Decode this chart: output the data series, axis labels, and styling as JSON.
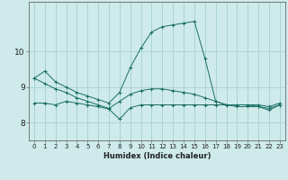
{
  "title": "",
  "xlabel": "Humidex (Indice chaleur)",
  "ylabel": "",
  "xlim": [
    -0.5,
    23.5
  ],
  "ylim": [
    7.5,
    11.4
  ],
  "yticks": [
    8,
    9,
    10
  ],
  "xtick_labels": [
    "0",
    "1",
    "2",
    "3",
    "4",
    "5",
    "6",
    "7",
    "8",
    "9",
    "10",
    "11",
    "12",
    "13",
    "14",
    "15",
    "16",
    "17",
    "18",
    "19",
    "20",
    "21",
    "22",
    "23"
  ],
  "background_color": "#ceeaea",
  "grid_color": "#aad4d4",
  "line_color": "#1a6e64",
  "line1_x": [
    0,
    1,
    2,
    3,
    4,
    5,
    6,
    7,
    8,
    9,
    10,
    11,
    12,
    13,
    14,
    15,
    16,
    17,
    18,
    19,
    20,
    21,
    22,
    23
  ],
  "line1_y": [
    9.25,
    9.45,
    9.15,
    9.0,
    8.85,
    8.75,
    8.65,
    8.55,
    8.85,
    9.55,
    10.1,
    10.55,
    10.7,
    10.75,
    10.8,
    10.85,
    9.8,
    8.6,
    8.5,
    8.5,
    8.5,
    8.5,
    8.45,
    8.55
  ],
  "line2_x": [
    0,
    1,
    2,
    3,
    4,
    5,
    6,
    7,
    8,
    9,
    10,
    11,
    12,
    13,
    14,
    15,
    16,
    17,
    18,
    19,
    20,
    21,
    22,
    23
  ],
  "line2_y": [
    9.25,
    9.1,
    8.95,
    8.85,
    8.7,
    8.6,
    8.5,
    8.4,
    8.6,
    8.8,
    8.9,
    8.95,
    8.95,
    8.9,
    8.85,
    8.8,
    8.7,
    8.6,
    8.5,
    8.45,
    8.45,
    8.45,
    8.4,
    8.5
  ],
  "line3_x": [
    0,
    1,
    2,
    3,
    4,
    5,
    6,
    7,
    8,
    9,
    10,
    11,
    12,
    13,
    14,
    15,
    16,
    17,
    18,
    19,
    20,
    21,
    22,
    23
  ],
  "line3_y": [
    8.55,
    8.55,
    8.5,
    8.6,
    8.55,
    8.5,
    8.45,
    8.38,
    8.1,
    8.42,
    8.5,
    8.5,
    8.5,
    8.5,
    8.5,
    8.5,
    8.5,
    8.5,
    8.5,
    8.5,
    8.5,
    8.45,
    8.35,
    8.5
  ]
}
